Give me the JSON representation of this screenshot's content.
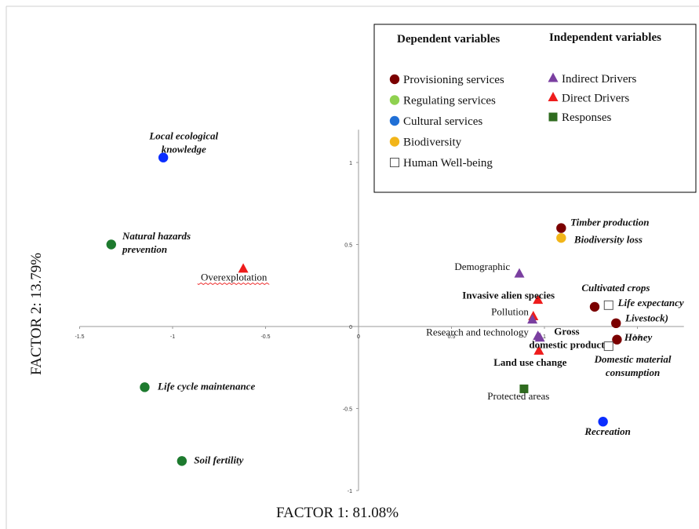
{
  "chart_data": {
    "type": "scatter",
    "xlabel": "FACTOR 1: 81.08%",
    "ylabel": "FACTOR 2:  13.79%",
    "xlim": [
      -1.5,
      1.75
    ],
    "ylim": [
      -1,
      1.2
    ],
    "x_ticks": [
      {
        "v": -1.5,
        "t": "-1.5"
      },
      {
        "v": -1,
        "t": "-1"
      },
      {
        "v": -0.5,
        "t": "-0.5"
      },
      {
        "v": 0,
        "t": "0"
      },
      {
        "v": 0.5,
        "t": "0.5"
      },
      {
        "v": 1,
        "t": "1"
      },
      {
        "v": 1.5,
        "t": "1.5"
      }
    ],
    "y_ticks": [
      {
        "v": 1,
        "t": "1"
      },
      {
        "v": 0.5,
        "t": "0.5"
      },
      {
        "v": 0,
        "t": "0"
      },
      {
        "v": -0.5,
        "t": "-0.5"
      },
      {
        "v": -1,
        "t": "-1"
      }
    ],
    "legend": {
      "position": "top-right",
      "dependent_title": "Dependent variables",
      "independent_title": "Independent variables",
      "dependent": [
        {
          "label": "Provisioning services",
          "color": "#7b0000",
          "shape": "circle"
        },
        {
          "label": "Regulating services",
          "color": "#8fd14f",
          "shape": "circle"
        },
        {
          "label": "Cultural services",
          "color": "#1f6fd6",
          "shape": "circle"
        },
        {
          "label": "Biodiversity",
          "color": "#f2b519",
          "shape": "circle"
        },
        {
          "label": "Human Well-being",
          "color": "#ffffff",
          "shape": "square-outline"
        }
      ],
      "independent": [
        {
          "label": "Indirect Drivers",
          "color": "#7a3fa0",
          "shape": "triangle"
        },
        {
          "label": "Direct Drivers",
          "color": "#ee1c1c",
          "shape": "triangle"
        },
        {
          "label": "Responses",
          "color": "#2f6b1f",
          "shape": "square"
        }
      ]
    },
    "points": [
      {
        "label": "Local ecological\nknowledge",
        "x": -1.05,
        "y": 1.03,
        "shape": "circle",
        "color": "#0a2dff",
        "style": "bi",
        "anchor": "middle",
        "lx": -0.94,
        "ly": 1.14
      },
      {
        "label": "Natural hazards\nprevention",
        "x": -1.33,
        "y": 0.5,
        "shape": "circle",
        "color": "#1d7a2e",
        "style": "bi",
        "anchor": "start",
        "lx": -1.27,
        "ly": 0.53
      },
      {
        "label": "Overexplotation",
        "x": -0.62,
        "y": 0.35,
        "shape": "triangle",
        "color": "#ee1c1c",
        "style": "n",
        "anchor": "middle",
        "lx": -0.67,
        "ly": 0.28,
        "underline": true
      },
      {
        "label": "Life cycle maintenance",
        "x": -1.15,
        "y": -0.37,
        "shape": "circle",
        "color": "#1d7a2e",
        "style": "bi",
        "anchor": "start",
        "lx": -1.08,
        "ly": -0.385
      },
      {
        "label": "Soil fertility",
        "x": -0.95,
        "y": -0.82,
        "shape": "circle",
        "color": "#1d7a2e",
        "style": "bi",
        "anchor": "start",
        "lx": -0.885,
        "ly": -0.835
      },
      {
        "label": "Timber production",
        "x": 1.09,
        "y": 0.6,
        "shape": "circle",
        "color": "#7b0000",
        "style": "bi",
        "anchor": "start",
        "lx": 1.14,
        "ly": 0.615
      },
      {
        "label": "Biodiversity loss",
        "x": 1.09,
        "y": 0.54,
        "shape": "circle",
        "color": "#f2b519",
        "style": "bi",
        "anchor": "start",
        "lx": 1.16,
        "ly": 0.51
      },
      {
        "label": "Demographic",
        "x": 0.865,
        "y": 0.32,
        "shape": "triangle",
        "color": "#7a3fa0",
        "style": "n",
        "anchor": "end",
        "lx": 0.815,
        "ly": 0.345
      },
      {
        "label": "Invasive alien species",
        "x": 0.965,
        "y": 0.16,
        "shape": "triangle",
        "color": "#ee1c1c",
        "style": "b",
        "anchor": "end",
        "lx": 1.055,
        "ly": 0.17
      },
      {
        "label": "Pollution",
        "x": 0.94,
        "y": 0.06,
        "shape": "triangle",
        "color": "#ee1c1c",
        "style": "n",
        "anchor": "end",
        "lx": 0.915,
        "ly": 0.07
      },
      {
        "label": "",
        "x": 0.935,
        "y": 0.04,
        "shape": "triangle",
        "color": "#7a3fa0"
      },
      {
        "label": "Research and technology",
        "x": 0.965,
        "y": -0.06,
        "shape": "triangle",
        "color": "#7a3fa0",
        "style": "n",
        "anchor": "end",
        "lx": 0.915,
        "ly": -0.055
      },
      {
        "label": "Gross\ndomestic product",
        "x": 0.975,
        "y": -0.07,
        "shape": "triangle",
        "color": "#7a3fa0",
        "style": "b",
        "anchor": "middle",
        "lx": 1.12,
        "ly": -0.05
      },
      {
        "label": "Land use change",
        "x": 0.97,
        "y": -0.15,
        "shape": "triangle",
        "color": "#ee1c1c",
        "style": "b",
        "anchor": "end",
        "lx": 1.12,
        "ly": -0.24
      },
      {
        "label": "Cultivated crops",
        "x": 1.27,
        "y": 0.12,
        "shape": "circle",
        "color": "#7b0000",
        "style": "bi",
        "anchor": "start",
        "lx": 1.2,
        "ly": 0.215
      },
      {
        "label": "Life expectancy",
        "x": 1.345,
        "y": 0.13,
        "shape": "square-outline",
        "color": "#ffffff",
        "style": "bi",
        "anchor": "start",
        "lx": 1.395,
        "ly": 0.125
      },
      {
        "label": "Livestock)",
        "x": 1.385,
        "y": 0.02,
        "shape": "circle",
        "color": "#7b0000",
        "style": "bi",
        "anchor": "start",
        "lx": 1.435,
        "ly": 0.03
      },
      {
        "label": "Honey",
        "x": 1.39,
        "y": -0.08,
        "shape": "circle",
        "color": "#7b0000",
        "style": "bi",
        "anchor": "start",
        "lx": 1.43,
        "ly": -0.085
      },
      {
        "label": "Domestic material\nconsumption",
        "x": 1.345,
        "y": -0.12,
        "shape": "square-outline",
        "color": "#ffffff",
        "style": "bi",
        "anchor": "middle",
        "lx": 1.475,
        "ly": -0.22
      },
      {
        "label": "Protected areas",
        "x": 0.89,
        "y": -0.38,
        "shape": "square",
        "color": "#2f6b1f",
        "style": "n",
        "anchor": "middle",
        "lx": 0.86,
        "ly": -0.445
      },
      {
        "label": "Recreation",
        "x": 1.315,
        "y": -0.58,
        "shape": "circle",
        "color": "#0a2dff",
        "style": "bi",
        "anchor": "middle",
        "lx": 1.34,
        "ly": -0.66
      }
    ]
  }
}
